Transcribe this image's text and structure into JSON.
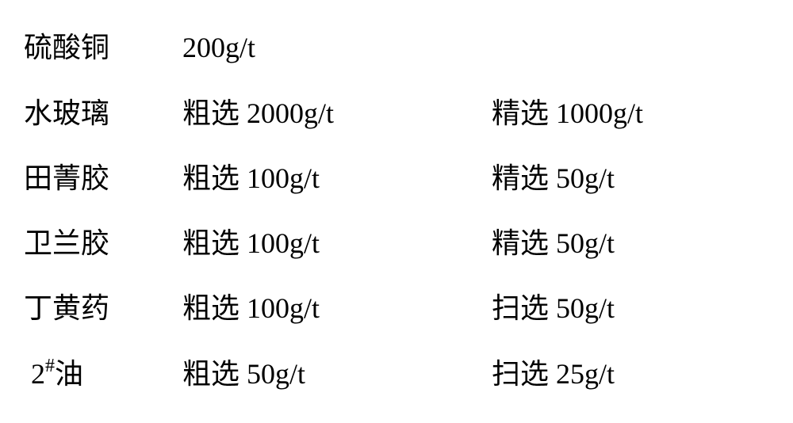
{
  "table": {
    "font_size": 36,
    "text_color": "#000000",
    "background_color": "#ffffff",
    "rows": [
      {
        "reagent": "硫酸铜",
        "col2": "200g/t",
        "col3": ""
      },
      {
        "reagent": "水玻璃",
        "col2": "粗选 2000g/t",
        "col3": "精选 1000g/t"
      },
      {
        "reagent": "田菁胶",
        "col2": "粗选 100g/t",
        "col3": "精选 50g/t"
      },
      {
        "reagent": "卫兰胶",
        "col2": "粗选 100g/t",
        "col3": "精选 50g/t"
      },
      {
        "reagent": "丁黄药",
        "col2": "粗选 100g/t",
        "col3": "扫选 50g/t"
      },
      {
        "reagent_prefix": "2",
        "reagent_sup": "#",
        "reagent_suffix": "油",
        "col2": "粗选 50g/t",
        "col3": "扫选 25g/t"
      }
    ]
  }
}
